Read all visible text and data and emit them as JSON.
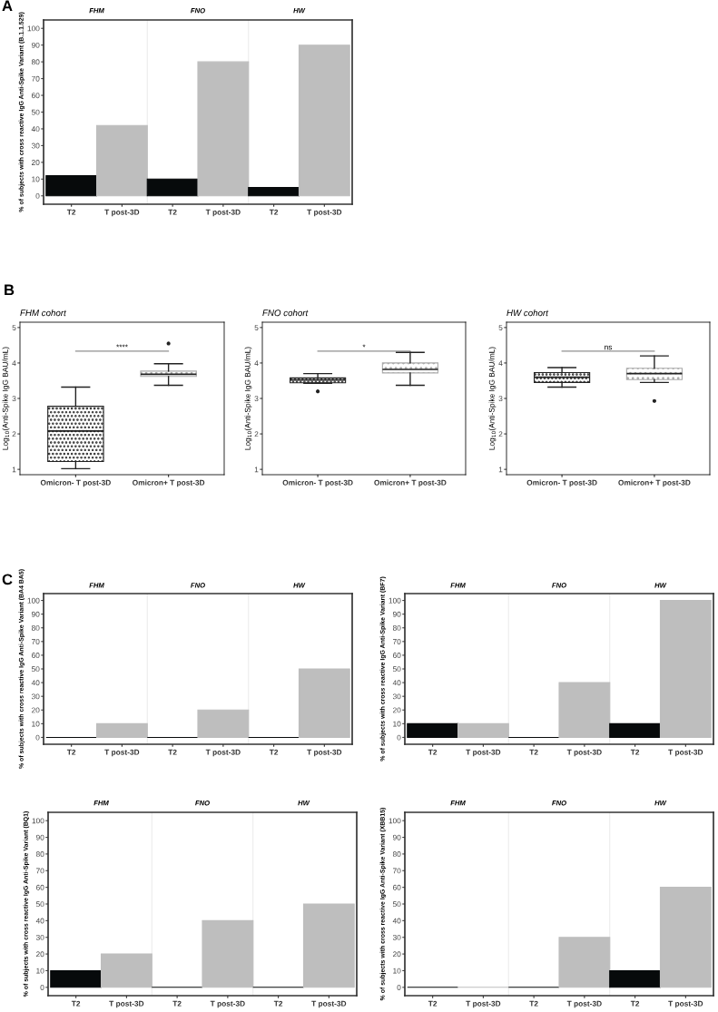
{
  "chart_data": [
    {
      "type": "bar",
      "title": "A",
      "categories": [
        "T2",
        "T post-3D",
        "T2",
        "T post-3D",
        "T2",
        "T post-3D"
      ],
      "values": [
        12,
        42,
        10,
        80,
        5,
        90
      ],
      "colors": [
        "#070a0b",
        "#bebebe",
        "#070a0b",
        "#bebebe",
        "#070a0b",
        "#bebebe"
      ],
      "ylim": [
        -5,
        105
      ],
      "yticks": [
        0,
        10,
        20,
        30,
        40,
        50,
        60,
        70,
        80,
        90,
        100
      ],
      "ylabel": "% of subjects with cross reactive IgG Anti-Spike Variant (B.1.1.529)",
      "annotations": [
        "FHM",
        "FNO",
        "HW"
      ]
    },
    {
      "type": "box",
      "title": "FHM cohort",
      "categories": [
        "Omicron- T post-3D",
        "Omicron+ T post-3D"
      ],
      "boxes": [
        {
          "low": 1.02,
          "q1": 1.22,
          "median": 2.08,
          "q3": 2.78,
          "high": 3.32
        },
        {
          "low": 3.37,
          "q1": 3.62,
          "median": 3.68,
          "q3": 3.77,
          "high": 3.98,
          "outliers": [
            4.55
          ]
        }
      ],
      "ylim": [
        0.85,
        5.15
      ],
      "yticks": [
        1,
        2,
        3,
        4,
        5
      ],
      "ylabel": "Log$_{10}$(Anti-Spike IgG BAU/mL)",
      "annotations": [
        "B",
        "****"
      ]
    },
    {
      "type": "box",
      "title": "FNO cohort",
      "categories": [
        "Omicron- T post-3D",
        "Omicron+ T post-3D"
      ],
      "boxes": [
        {
          "low": 3.43,
          "q1": 3.44,
          "median": 3.52,
          "q3": 3.58,
          "high": 3.7,
          "outliers": [
            3.2
          ]
        },
        {
          "low": 3.37,
          "q1": 3.72,
          "median": 3.82,
          "q3": 4.0,
          "high": 4.3
        }
      ],
      "ylim": [
        0.85,
        5.15
      ],
      "yticks": [
        1,
        2,
        3,
        4,
        5
      ],
      "ylabel": "Log$_{10}$(Anti-Spike IgG BAU/mL)",
      "annotations": [
        "*"
      ]
    },
    {
      "type": "box",
      "title": "HW cohort",
      "categories": [
        "Omicron- T post-3D",
        "Omicron+ T post-3D"
      ],
      "boxes": [
        {
          "low": 3.32,
          "q1": 3.45,
          "median": 3.6,
          "q3": 3.73,
          "high": 3.87
        },
        {
          "low": 3.45,
          "q1": 3.53,
          "median": 3.7,
          "q3": 3.85,
          "high": 4.2,
          "outliers": [
            2.93
          ]
        }
      ],
      "ylim": [
        0.85,
        5.15
      ],
      "yticks": [
        1,
        2,
        3,
        4,
        5
      ],
      "ylabel": "Log$_{10}$(Anti-Spike IgG BAU/mL)",
      "annotations": [
        "ns"
      ]
    },
    {
      "type": "bar",
      "title": "C",
      "categories": [
        "T2",
        "T post-3D",
        "T2",
        "T post-3D",
        "T2",
        "T post-3D"
      ],
      "values": [
        0,
        10,
        0,
        20,
        0,
        50
      ],
      "colors": [
        "#070a0b",
        "#bebebe",
        "#070a0b",
        "#bebebe",
        "#070a0b",
        "#bebebe"
      ],
      "ylim": [
        -5,
        105
      ],
      "yticks": [
        0,
        10,
        20,
        30,
        40,
        50,
        60,
        70,
        80,
        90,
        100
      ],
      "ylabel": "% of subjects with cross reactive IgG Anti-Spike Variant (BA4 BA5)",
      "annotations": [
        "FHM",
        "FNO",
        "HW"
      ]
    },
    {
      "type": "bar",
      "categories": [
        "T2",
        "T post-3D",
        "T2",
        "T post-3D",
        "T2",
        "T post-3D"
      ],
      "values": [
        10,
        10,
        0,
        40,
        10,
        100
      ],
      "colors": [
        "#070a0b",
        "#bebebe",
        "#070a0b",
        "#bebebe",
        "#070a0b",
        "#bebebe"
      ],
      "ylim": [
        -5,
        105
      ],
      "yticks": [
        0,
        10,
        20,
        30,
        40,
        50,
        60,
        70,
        80,
        90,
        100
      ],
      "ylabel": "% of subjects with cross reactive IgG Anti-Spike Variant (BF7)",
      "annotations": [
        "FHM",
        "FNO",
        "HW"
      ]
    },
    {
      "type": "bar",
      "categories": [
        "T2",
        "T post-3D",
        "T2",
        "T post-3D",
        "T2",
        "T post-3D"
      ],
      "values": [
        10,
        20,
        0,
        40,
        0,
        50
      ],
      "colors": [
        "#070a0b",
        "#bebebe",
        "#070a0b",
        "#bebebe",
        "#070a0b",
        "#bebebe"
      ],
      "ylim": [
        -5,
        105
      ],
      "yticks": [
        0,
        10,
        20,
        30,
        40,
        50,
        60,
        70,
        80,
        90,
        100
      ],
      "ylabel": "% of subjects with cross reactive IgG Anti-Spike Variant (BQ1)",
      "annotations": [
        "FHM",
        "FNO",
        "HW"
      ]
    },
    {
      "type": "bar",
      "categories": [
        "T2",
        "T post-3D",
        "T2",
        "T post-3D",
        "T2",
        "T post-3D"
      ],
      "values": [
        0,
        0,
        0,
        30,
        10,
        60
      ],
      "colors": [
        "#070a0b",
        "#bebebe",
        "#070a0b",
        "#bebebe",
        "#070a0b",
        "#bebebe"
      ],
      "ylim": [
        -5,
        105
      ],
      "yticks": [
        0,
        10,
        20,
        30,
        40,
        50,
        60,
        70,
        80,
        90,
        100
      ],
      "ylabel": "% of subjects with cross reactive IgG Anti-Spike Variant (XBB15)",
      "annotations": [
        "FHM",
        "FNO",
        "HW"
      ]
    }
  ]
}
